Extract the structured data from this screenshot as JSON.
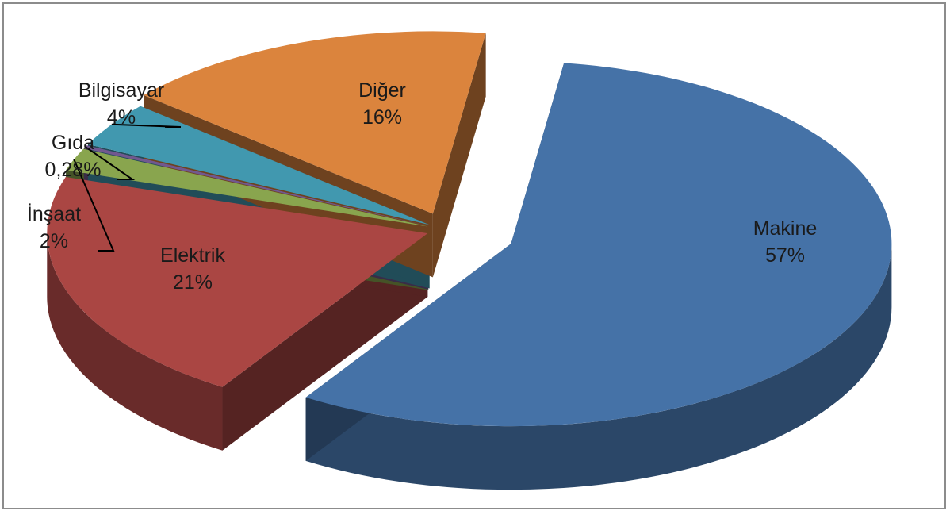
{
  "chart_data": {
    "type": "pie",
    "style": "3d-exploded",
    "legend": "none",
    "slices": [
      {
        "category": "Makine",
        "value": 57,
        "percent_label": "57%",
        "color": "#4572A7"
      },
      {
        "category": "Elektrik",
        "value": 21,
        "percent_label": "21%",
        "color": "#AA4643"
      },
      {
        "category": "İnşaat",
        "value": 2,
        "percent_label": "2%",
        "color": "#89A54E"
      },
      {
        "category": "Gıda",
        "value": 0.28,
        "percent_label": "0,28%",
        "color": "#71588F"
      },
      {
        "category": "Bilgisayar",
        "value": 4,
        "percent_label": "4%",
        "color": "#4198AF"
      },
      {
        "category": "Diğer",
        "value": 16,
        "percent_label": "16%",
        "color": "#DB843D"
      }
    ]
  }
}
